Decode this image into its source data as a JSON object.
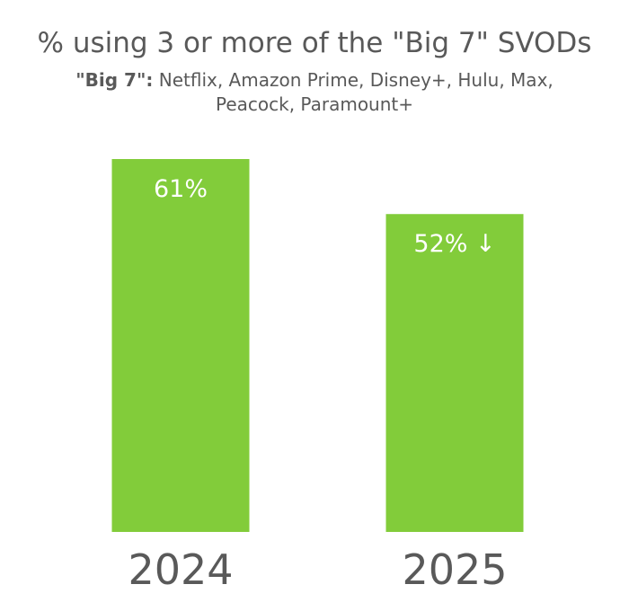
{
  "chart_data": {
    "type": "bar",
    "title": "% using 3 or more of the \"Big 7\" SVODs",
    "subtitle_bold": "\"Big 7\":",
    "subtitle_text": " Netflix, Amazon Prime, Disney+, Hulu, Max, Peacock, Paramount+",
    "categories": [
      "2024",
      "2025"
    ],
    "values": [
      61,
      52
    ],
    "data_labels": [
      "61%",
      "52% ↓"
    ],
    "ylim": [
      0,
      61
    ],
    "bar_color": "#82CC3A",
    "label_color": "#FFFFFF",
    "text_color": "#595959"
  }
}
